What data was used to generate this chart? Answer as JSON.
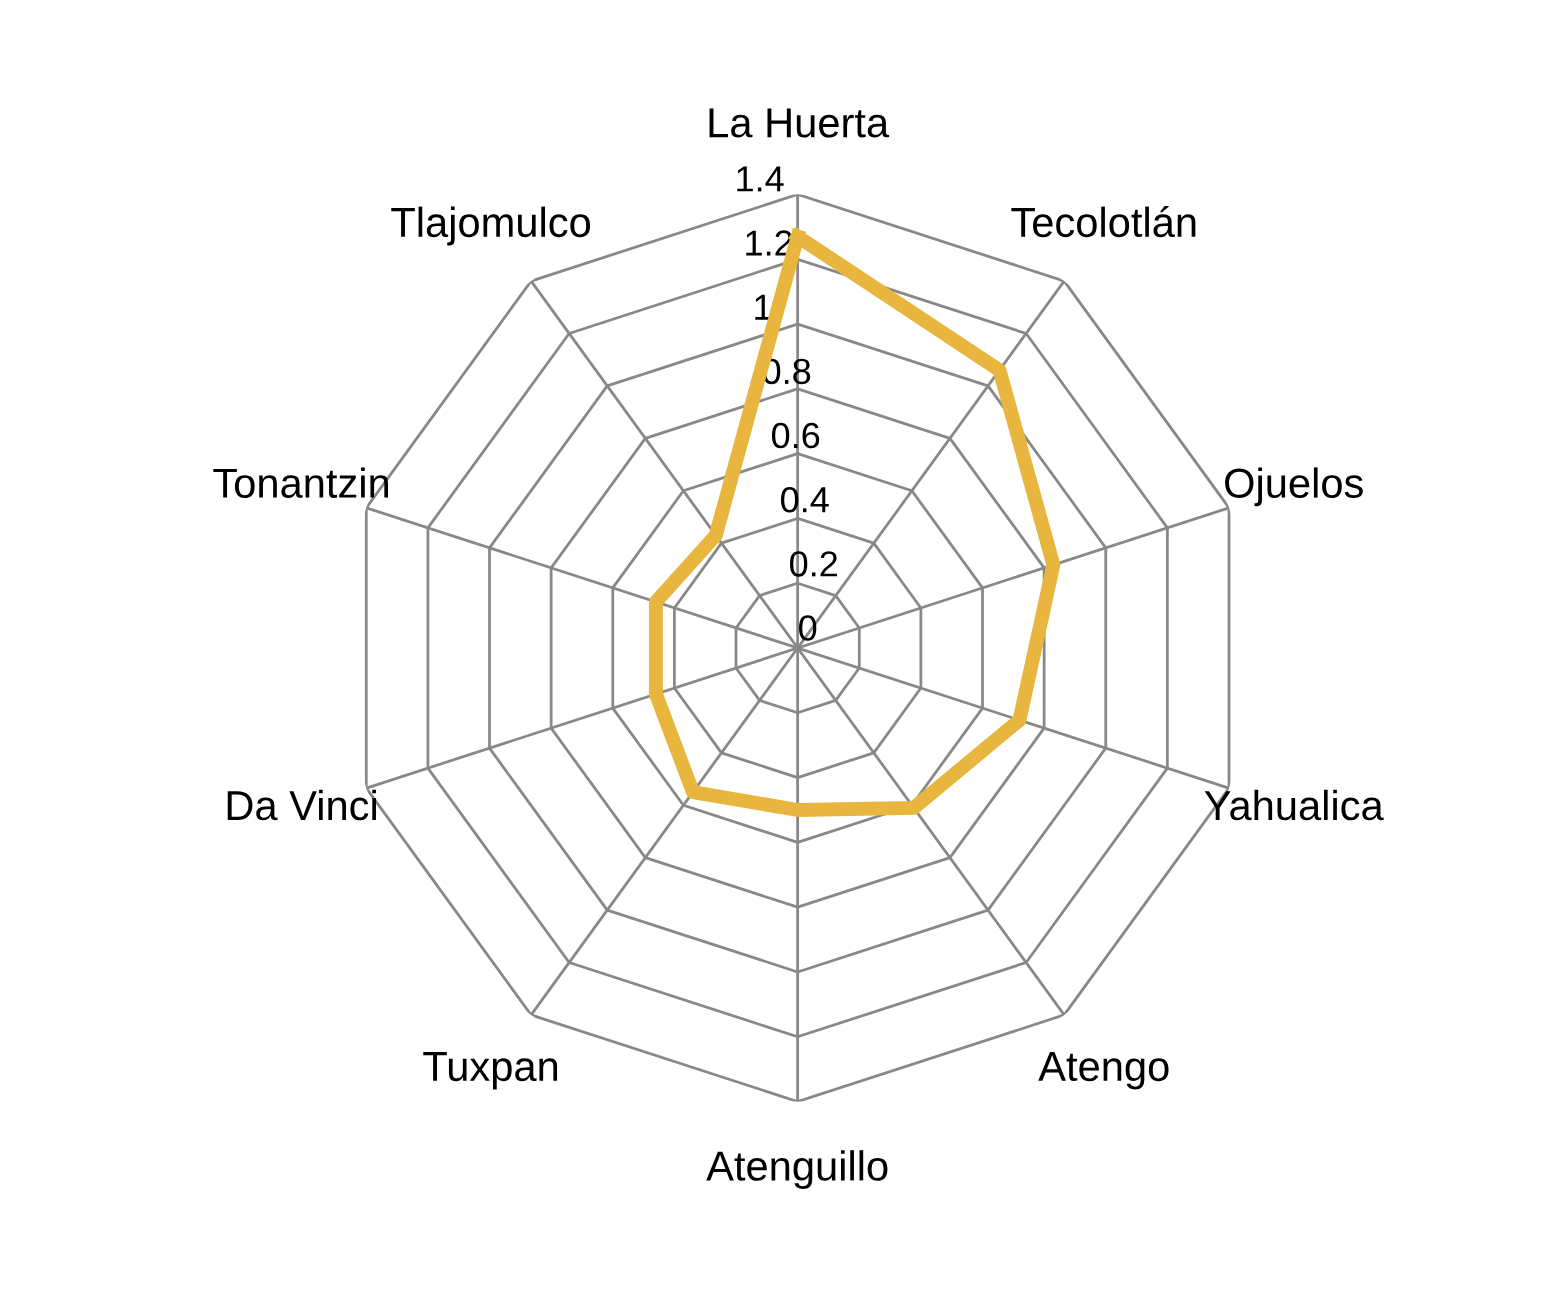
{
  "chart_data": {
    "type": "radar",
    "categories": [
      "La Huerta",
      "Tecolotlán",
      "Ojuelos",
      "Yahualica",
      "Atengo",
      "Atenguillo",
      "Tuxpan",
      "Da Vinci",
      "Tonantzin",
      "Tlajomulco"
    ],
    "series": [
      {
        "color": "#e8b53f",
        "values": [
          1.27,
          1.06,
          0.83,
          0.72,
          0.61,
          0.5,
          0.55,
          0.46,
          0.46,
          0.43
        ]
      }
    ],
    "ylim": [
      0,
      1.4
    ],
    "yticks": [
      0,
      0.2,
      0.4,
      0.6,
      0.8,
      1,
      1.2,
      1.4
    ],
    "grid": true,
    "marker": "none",
    "line_style": "solid"
  }
}
